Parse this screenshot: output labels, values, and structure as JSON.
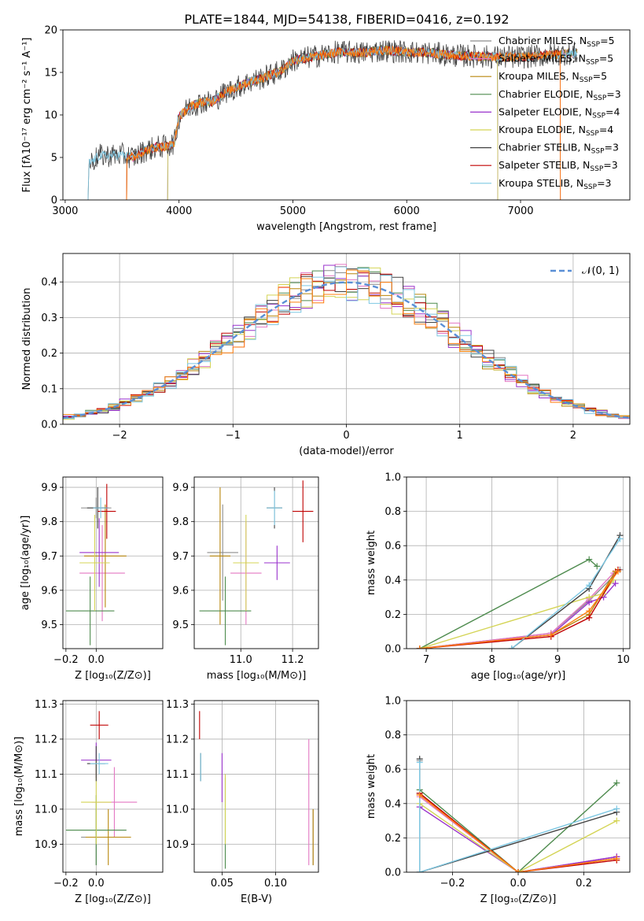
{
  "title": "PLATE=1844, MJD=54138, FIBERID=0416, z=0.192",
  "colors": {
    "Chabrier MILES": "#8c8c8c",
    "Salpeter MILES": "#e377c2",
    "Kroupa MILES": "#b8860b",
    "Chabrier ELODIE": "#4e8b4e",
    "Salpeter ELODIE": "#9932cc",
    "Kroupa ELODIE": "#d4d455",
    "Chabrier STELIB": "#404040",
    "Salpeter STELIB": "#c00000",
    "Kroupa STELIB": "#7ec8e3",
    "orange_model": "#ff7f0e",
    "normal_curve": "#5a8fd6",
    "grid": "#b0b0b0"
  },
  "chart_data": [
    {
      "id": "spectrum",
      "type": "line",
      "xlabel": "wavelength [Angstrom, rest frame]",
      "ylabel": "Flux [fλ10⁻¹⁷ erg cm⁻² s⁻¹ A⁻¹]",
      "xlim": [
        2980,
        7960
      ],
      "ylim": [
        0,
        20
      ],
      "xticks": [
        3000,
        4000,
        5000,
        6000,
        7000
      ],
      "yticks": [
        0,
        5,
        10,
        15,
        20
      ],
      "grid": false,
      "legend_position": "right",
      "legend": [
        {
          "label": "Chabrier MILES, N",
          "sub": "SSP",
          "suffix": "=5",
          "color": "Chabrier MILES"
        },
        {
          "label": "Salpeter MILES, N",
          "sub": "SSP",
          "suffix": "=5",
          "color": "Salpeter MILES"
        },
        {
          "label": "Kroupa MILES, N",
          "sub": "SSP",
          "suffix": "=5",
          "color": "Kroupa MILES"
        },
        {
          "label": "Chabrier ELODIE, N",
          "sub": "SSP",
          "suffix": "=3",
          "color": "Chabrier ELODIE"
        },
        {
          "label": "Salpeter ELODIE, N",
          "sub": "SSP",
          "suffix": "=4",
          "color": "Salpeter ELODIE"
        },
        {
          "label": "Kroupa ELODIE, N",
          "sub": "SSP",
          "suffix": "=4",
          "color": "Kroupa ELODIE"
        },
        {
          "label": "Chabrier STELIB, N",
          "sub": "SSP",
          "suffix": "=3",
          "color": "Chabrier STELIB"
        },
        {
          "label": "Salpeter STELIB, N",
          "sub": "SSP",
          "suffix": "=3",
          "color": "Salpeter STELIB"
        },
        {
          "label": "Kroupa STELIB, N",
          "sub": "SSP",
          "suffix": "=3",
          "color": "Kroupa STELIB"
        }
      ],
      "continuum": [
        [
          3200,
          0
        ],
        [
          3210,
          4.3
        ],
        [
          3300,
          5.2
        ],
        [
          3500,
          5.3
        ],
        [
          3600,
          5.0
        ],
        [
          3700,
          5.8
        ],
        [
          3800,
          6.2
        ],
        [
          3900,
          6.3
        ],
        [
          3960,
          6.8
        ],
        [
          4000,
          9.8
        ],
        [
          4100,
          11.0
        ],
        [
          4200,
          11.5
        ],
        [
          4300,
          11.6
        ],
        [
          4400,
          12.6
        ],
        [
          4500,
          13.2
        ],
        [
          4600,
          13.8
        ],
        [
          4700,
          14.2
        ],
        [
          4800,
          14.7
        ],
        [
          4900,
          15.2
        ],
        [
          5000,
          16.4
        ],
        [
          5200,
          16.9
        ],
        [
          5400,
          17.4
        ],
        [
          5600,
          17.3
        ],
        [
          5800,
          17.6
        ],
        [
          6000,
          17.4
        ],
        [
          6200,
          17.3
        ],
        [
          6400,
          17.0
        ],
        [
          6600,
          16.9
        ],
        [
          6800,
          16.8
        ],
        [
          7000,
          16.8
        ],
        [
          7200,
          17.0
        ],
        [
          7400,
          17.2
        ],
        [
          7500,
          17.3
        ]
      ],
      "series_start": [
        {
          "color": "Chabrier MILES",
          "start": 3540,
          "end": 7500
        },
        {
          "color": "Salpeter MILES",
          "start": 3540,
          "end": 7500
        },
        {
          "color": "Kroupa MILES",
          "start": 3540,
          "end": 7500
        },
        {
          "color": "Chabrier ELODIE",
          "start": 3900,
          "end": 6800
        },
        {
          "color": "Salpeter ELODIE",
          "start": 3900,
          "end": 6800
        },
        {
          "color": "Kroupa ELODIE",
          "start": 3900,
          "end": 6800
        },
        {
          "color": "Chabrier STELIB",
          "start": 3200,
          "end": 7500
        },
        {
          "color": "Salpeter STELIB",
          "start": 3540,
          "end": 7350
        },
        {
          "color": "Kroupa STELIB",
          "start": 3200,
          "end": 7500
        },
        {
          "color": "orange_model",
          "start": 3540,
          "end": 7350
        }
      ]
    },
    {
      "id": "residuals",
      "type": "histogram",
      "xlabel": "(data-model)/error",
      "ylabel": "Normed distribution",
      "xlim": [
        -2.5,
        2.5
      ],
      "ylim": [
        0,
        0.48
      ],
      "xticks": [
        -2,
        -1,
        0,
        1,
        2
      ],
      "yticks": [
        0.0,
        0.1,
        0.2,
        0.3,
        0.4
      ],
      "grid": true,
      "legend": "𝒩(0, 1)",
      "bin_width": 0.1,
      "normal_curve": {
        "mean": 0,
        "sigma": 1
      }
    },
    {
      "id": "age_vs_Z",
      "type": "errorbar",
      "xlabel": "Z [log₁₀(Z/Z⊙)]",
      "ylabel": "age  [log₁₀(age/yr)]",
      "xlim": [
        -0.22,
        0.44
      ],
      "ylim": [
        9.43,
        9.93
      ],
      "xticks": [
        -0.2,
        0.0
      ],
      "yticks": [
        9.5,
        9.6,
        9.7,
        9.8,
        9.9
      ],
      "grid": true,
      "points": [
        {
          "color": "Chabrier MILES",
          "x": 0.0,
          "xerr": 0.1,
          "y": 9.84,
          "yerr": 0.03
        },
        {
          "color": "Salpeter MILES",
          "x": 0.04,
          "xerr": 0.15,
          "y": 9.65,
          "yerr": 0.14
        },
        {
          "color": "Kroupa MILES",
          "x": 0.06,
          "xerr": 0.14,
          "y": 9.7,
          "yerr": 0.15
        },
        {
          "color": "Chabrier ELODIE",
          "x": -0.04,
          "xerr": 0.16,
          "y": 9.54,
          "yerr": 0.1
        },
        {
          "color": "Salpeter ELODIE",
          "x": 0.02,
          "xerr": 0.13,
          "y": 9.71,
          "yerr": 0.1
        },
        {
          "color": "Kroupa ELODIE",
          "x": -0.01,
          "xerr": 0.1,
          "y": 9.68,
          "yerr": 0.14
        },
        {
          "color": "Chabrier STELIB",
          "x": 0.01,
          "xerr": 0.07,
          "y": 9.84,
          "yerr": 0.06
        },
        {
          "color": "Salpeter STELIB",
          "x": 0.07,
          "xerr": 0.06,
          "y": 9.83,
          "yerr": 0.08
        },
        {
          "color": "Kroupa STELIB",
          "x": 0.03,
          "xerr": 0.05,
          "y": 9.84,
          "yerr": 0.03
        }
      ]
    },
    {
      "id": "age_vs_mass",
      "type": "errorbar",
      "xlabel": "mass [log₁₀(M/M⊙)]",
      "ylabel": "",
      "xlim": [
        10.82,
        11.3
      ],
      "ylim": [
        9.43,
        9.93
      ],
      "xticks": [
        11.0,
        11.2
      ],
      "yticks": [
        9.5,
        9.6,
        9.7,
        9.8,
        9.9
      ],
      "grid": true,
      "points": [
        {
          "color": "Chabrier MILES",
          "x": 10.93,
          "xerr": 0.06,
          "y": 9.71,
          "yerr": 0.14
        },
        {
          "color": "Salpeter MILES",
          "x": 11.02,
          "xerr": 0.06,
          "y": 9.65,
          "yerr": 0.15
        },
        {
          "color": "Kroupa MILES",
          "x": 10.92,
          "xerr": 0.04,
          "y": 9.7,
          "yerr": 0.2
        },
        {
          "color": "Chabrier ELODIE",
          "x": 10.94,
          "xerr": 0.1,
          "y": 9.54,
          "yerr": 0.1
        },
        {
          "color": "Salpeter ELODIE",
          "x": 11.14,
          "xerr": 0.05,
          "y": 9.68,
          "yerr": 0.05
        },
        {
          "color": "Kroupa ELODIE",
          "x": 11.02,
          "xerr": 0.05,
          "y": 9.68,
          "yerr": 0.14
        },
        {
          "color": "Chabrier STELIB",
          "x": 11.13,
          "xerr": 0.03,
          "y": 9.84,
          "yerr": 0.06
        },
        {
          "color": "Salpeter STELIB",
          "x": 11.24,
          "xerr": 0.04,
          "y": 9.83,
          "yerr": 0.09
        },
        {
          "color": "Kroupa STELIB",
          "x": 11.13,
          "xerr": 0.03,
          "y": 9.84,
          "yerr": 0.05
        }
      ]
    },
    {
      "id": "weight_vs_age",
      "type": "line",
      "xlabel": "age  [log₁₀(age/yr)]",
      "ylabel": "mass weight",
      "xlim": [
        6.7,
        10.1
      ],
      "ylim": [
        0,
        1.0
      ],
      "xticks": [
        7,
        8,
        9,
        10
      ],
      "yticks": [
        0.0,
        0.2,
        0.4,
        0.6,
        0.8,
        1.0
      ],
      "grid": true,
      "series": [
        {
          "color": "Chabrier MILES",
          "x": [
            6.9,
            8.9,
            9.48,
            9.95
          ],
          "y": [
            0.0,
            0.09,
            0.28,
            0.46
          ]
        },
        {
          "color": "Salpeter MILES",
          "x": [
            6.9,
            8.9,
            9.48,
            9.85
          ],
          "y": [
            0.0,
            0.09,
            0.29,
            0.44
          ]
        },
        {
          "color": "Kroupa MILES",
          "x": [
            6.9,
            8.9,
            9.48,
            9.88
          ],
          "y": [
            0.0,
            0.08,
            0.2,
            0.45
          ]
        },
        {
          "color": "Chabrier ELODIE",
          "x": [
            6.9,
            9.48,
            9.6
          ],
          "y": [
            0.0,
            0.52,
            0.48
          ]
        },
        {
          "color": "Salpeter ELODIE",
          "x": [
            6.9,
            8.9,
            9.48,
            9.7,
            9.88
          ],
          "y": [
            0.0,
            0.08,
            0.27,
            0.3,
            0.38
          ]
        },
        {
          "color": "Kroupa ELODIE",
          "x": [
            6.9,
            9.48,
            9.7,
            9.85
          ],
          "y": [
            0.0,
            0.3,
            0.32,
            0.4
          ]
        },
        {
          "color": "Chabrier STELIB",
          "x": [
            8.3,
            9.48,
            9.95
          ],
          "y": [
            0.0,
            0.35,
            0.66
          ]
        },
        {
          "color": "Salpeter STELIB",
          "x": [
            6.9,
            8.9,
            9.48,
            9.92
          ],
          "y": [
            0.0,
            0.07,
            0.18,
            0.46
          ]
        },
        {
          "color": "Kroupa STELIB",
          "x": [
            8.3,
            9.48,
            9.95
          ],
          "y": [
            0.0,
            0.37,
            0.64
          ]
        },
        {
          "color": "orange_model",
          "x": [
            6.9,
            8.9,
            9.48,
            9.92
          ],
          "y": [
            0.0,
            0.08,
            0.22,
            0.45
          ]
        }
      ]
    },
    {
      "id": "mass_vs_Z",
      "type": "errorbar",
      "xlabel": "Z [log₁₀(Z/Z⊙)]",
      "ylabel": "mass [log₁₀(M/M⊙)]",
      "xlim": [
        -0.22,
        0.44
      ],
      "ylim": [
        10.82,
        11.31
      ],
      "xticks": [
        -0.2,
        0.0
      ],
      "yticks": [
        10.9,
        11.0,
        11.1,
        11.2,
        11.3
      ],
      "grid": true,
      "points": [
        {
          "color": "Chabrier MILES",
          "x": 0.0,
          "xerr": 0.1,
          "y": 10.92,
          "yerr": 0.08
        },
        {
          "color": "Salpeter MILES",
          "x": 0.12,
          "xerr": 0.15,
          "y": 11.02,
          "yerr": 0.1
        },
        {
          "color": "Kroupa MILES",
          "x": 0.08,
          "xerr": 0.15,
          "y": 10.92,
          "yerr": 0.08
        },
        {
          "color": "Chabrier ELODIE",
          "x": 0.0,
          "xerr": 0.2,
          "y": 10.94,
          "yerr": 0.1
        },
        {
          "color": "Salpeter ELODIE",
          "x": 0.0,
          "xerr": 0.1,
          "y": 11.14,
          "yerr": 0.05
        },
        {
          "color": "Kroupa ELODIE",
          "x": 0.0,
          "xerr": 0.1,
          "y": 11.02,
          "yerr": 0.12
        },
        {
          "color": "Chabrier STELIB",
          "x": 0.0,
          "xerr": 0.06,
          "y": 11.13,
          "yerr": 0.05
        },
        {
          "color": "Salpeter STELIB",
          "x": 0.02,
          "xerr": 0.06,
          "y": 11.24,
          "yerr": 0.04
        },
        {
          "color": "Kroupa STELIB",
          "x": 0.02,
          "xerr": 0.06,
          "y": 11.13,
          "yerr": 0.03
        }
      ]
    },
    {
      "id": "mass_vs_EBV",
      "type": "errorbar",
      "xlabel": "E(B-V)",
      "ylabel": "",
      "xlim": [
        0.024,
        0.14
      ],
      "ylim": [
        10.82,
        11.31
      ],
      "xticks": [
        0.05,
        0.1
      ],
      "yticks": [
        10.9,
        11.0,
        11.1,
        11.2,
        11.3
      ],
      "grid": true,
      "points": [
        {
          "color": "Chabrier MILES",
          "x": 0.135,
          "xerr": 0,
          "y": 10.92,
          "yerr": 0.08
        },
        {
          "color": "Salpeter MILES",
          "x": 0.131,
          "xerr": 0,
          "y": 11.02,
          "yerr": 0.18
        },
        {
          "color": "Kroupa MILES",
          "x": 0.135,
          "xerr": 0,
          "y": 10.92,
          "yerr": 0.08
        },
        {
          "color": "Chabrier ELODIE",
          "x": 0.053,
          "xerr": 0,
          "y": 10.96,
          "yerr": 0.13
        },
        {
          "color": "Salpeter ELODIE",
          "x": 0.05,
          "xerr": 0,
          "y": 11.09,
          "yerr": 0.07
        },
        {
          "color": "Kroupa ELODIE",
          "x": 0.053,
          "xerr": 0,
          "y": 11.0,
          "yerr": 0.1
        },
        {
          "color": "Chabrier STELIB",
          "x": 0.03,
          "xerr": 0,
          "y": 11.12,
          "yerr": 0.04
        },
        {
          "color": "Salpeter STELIB",
          "x": 0.029,
          "xerr": 0,
          "y": 11.24,
          "yerr": 0.04
        },
        {
          "color": "Kroupa STELIB",
          "x": 0.03,
          "xerr": 0,
          "y": 11.12,
          "yerr": 0.04
        }
      ]
    },
    {
      "id": "weight_vs_Z",
      "type": "line",
      "xlabel": "Z [log₁₀(Z/Z⊙)]",
      "ylabel": "mass weight",
      "xlim": [
        -0.34,
        0.34
      ],
      "ylim": [
        0,
        1.0
      ],
      "xticks": [
        -0.2,
        0.0,
        0.2
      ],
      "yticks": [
        0.0,
        0.2,
        0.4,
        0.6,
        0.8,
        1.0
      ],
      "grid": true,
      "series": [
        {
          "color": "Chabrier MILES",
          "x": [
            -0.3,
            -0.3,
            0.0,
            0.3
          ],
          "y": [
            0.65,
            0.46,
            0.0,
            0.09
          ]
        },
        {
          "color": "Salpeter MILES",
          "x": [
            -0.3,
            0.0,
            0.3
          ],
          "y": [
            0.44,
            0.0,
            0.09
          ]
        },
        {
          "color": "Kroupa MILES",
          "x": [
            -0.3,
            0.0,
            0.3
          ],
          "y": [
            0.45,
            0.0,
            0.08
          ]
        },
        {
          "color": "Chabrier ELODIE",
          "x": [
            -0.3,
            0.0,
            0.3
          ],
          "y": [
            0.48,
            0.0,
            0.52
          ]
        },
        {
          "color": "Salpeter ELODIE",
          "x": [
            -0.3,
            0.0,
            0.3
          ],
          "y": [
            0.38,
            0.0,
            0.09
          ]
        },
        {
          "color": "Kroupa ELODIE",
          "x": [
            -0.3,
            0.0,
            0.3
          ],
          "y": [
            0.4,
            0.0,
            0.3
          ]
        },
        {
          "color": "Chabrier STELIB",
          "x": [
            -0.3,
            -0.3,
            0.3
          ],
          "y": [
            0.66,
            0.0,
            0.35
          ]
        },
        {
          "color": "Salpeter STELIB",
          "x": [
            -0.3,
            0.0,
            0.3
          ],
          "y": [
            0.46,
            0.0,
            0.07
          ]
        },
        {
          "color": "Kroupa STELIB",
          "x": [
            -0.3,
            -0.3,
            0.3
          ],
          "y": [
            0.64,
            0.0,
            0.37
          ]
        },
        {
          "color": "orange_model",
          "x": [
            -0.3,
            0.0,
            0.3
          ],
          "y": [
            0.45,
            0.0,
            0.08
          ]
        }
      ]
    }
  ]
}
